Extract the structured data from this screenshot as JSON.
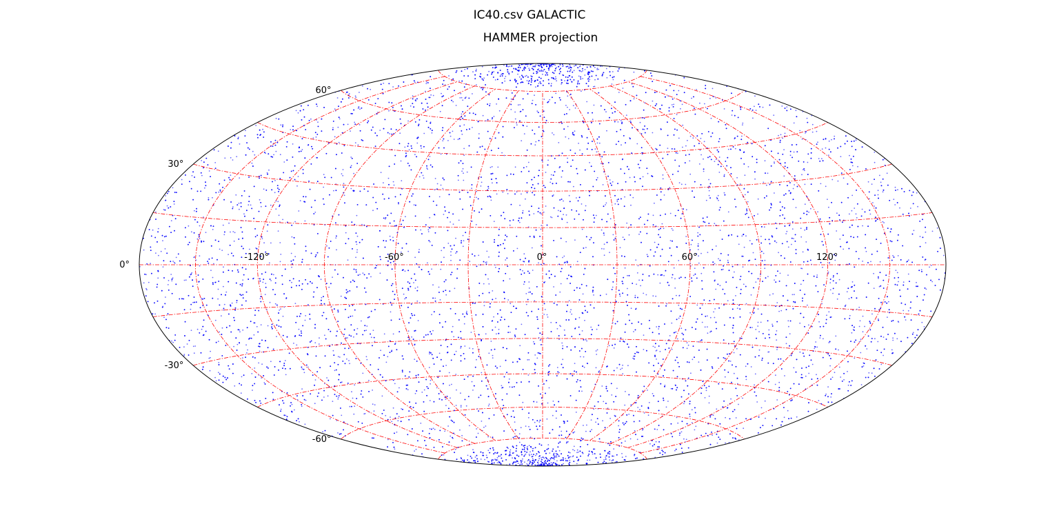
{
  "figure": {
    "suptitle": "IC40.csv GALACTIC"
  },
  "chart_data": {
    "type": "scatter",
    "projection": "hammer",
    "title": "HAMMER projection",
    "xlabel": "",
    "ylabel": "",
    "xlim": [
      -180,
      180
    ],
    "ylim": [
      -90,
      90
    ],
    "grid": true,
    "grid_color": "#ff0000",
    "grid_style": "dash-dot",
    "point_color": "#0000ff",
    "boundary_color": "#000000",
    "x_ticks": [
      -120,
      -60,
      0,
      60,
      120
    ],
    "y_ticks": [
      -60,
      -30,
      0,
      30,
      60
    ],
    "x_tick_labels": [
      "-120°",
      "-60°",
      "0°",
      "60°",
      "120°"
    ],
    "y_tick_labels": [
      "-60°",
      "-30°",
      "0°",
      "30°",
      "60°"
    ],
    "series": [
      {
        "description_note": "",
        "point_count_estimate": 12000,
        "distribution": "dense all-sky coverage with concentrations near both galactic poles",
        "sample_points": [
          [
            -150,
            10
          ],
          [
            -100,
            25
          ],
          [
            -40,
            45
          ],
          [
            20,
            70
          ],
          [
            80,
            55
          ],
          [
            140,
            20
          ],
          [
            -170,
            -15
          ],
          [
            -90,
            -40
          ],
          [
            -20,
            -70
          ],
          [
            30,
            -80
          ],
          [
            100,
            -35
          ],
          [
            160,
            -5
          ],
          [
            0,
            85
          ],
          [
            5,
            -85
          ],
          [
            -60,
            0
          ],
          [
            60,
            0
          ],
          [
            120,
            -60
          ],
          [
            -120,
            60
          ]
        ]
      }
    ]
  }
}
